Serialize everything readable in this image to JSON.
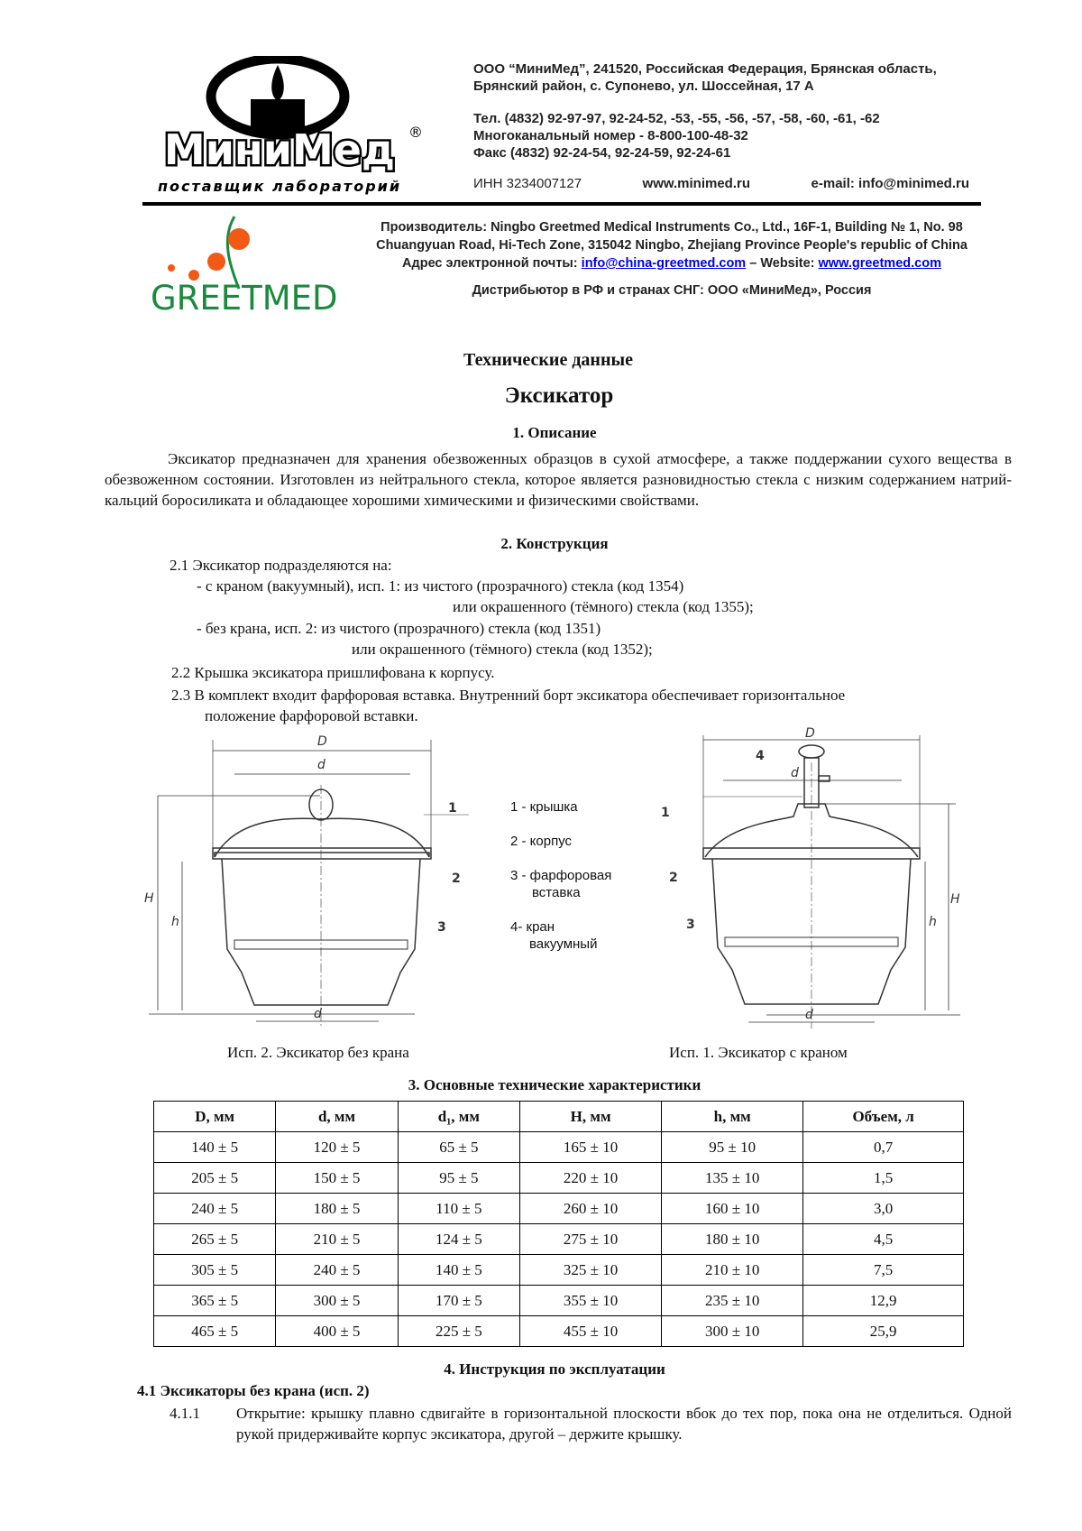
{
  "header": {
    "minimed_logo": "МиниМед",
    "minimed_slogan": "поставщик лабораторий",
    "address1": "ООО “МиниМед”, 241520, Российская Федерация, Брянская область,",
    "address2": "Брянский район, с. Супонево, ул. Шоссейная, 17 А",
    "phone": "Тел. (4832) 92-97-97, 92-24-52, -53, -55, -56, -57, -58, -60, -61, -62",
    "multichannel": "Многоканальный номер - 8-800-100-48-32",
    "fax": "Факс (4832) 92-24-54, 92-24-59, 92-24-61",
    "inn": "ИНН 3234007127",
    "website": "www.minimed.ru",
    "email": "e-mail: info@minimed.ru",
    "greetmed_logo": "GREETMED",
    "manufacturer1": "Производитель: Ningbo Greetmed Medical Instruments Co., Ltd., 16F-1, Building № 1, No. 98",
    "manufacturer2": "Chuangyuan Road, Hi-Tech Zone, 315042 Ningbo, Zhejiang Province People's republic of China",
    "email_label": "Адрес электронной почты: ",
    "email_link": "info@china-greetmed.com",
    "website_label": " – Website: ",
    "website_link": "www.greetmed.com",
    "distributor": "Дистрибьютор в РФ и странах СНГ: ООО «МиниМед», Россия"
  },
  "doc": {
    "title": "Технические данные",
    "product": "Эксикатор",
    "s1_title": "1.  Описание",
    "s1_text": "Эксикатор предназначен для хранения обезвоженных образцов в сухой атмосфере, а также поддержании сухого вещества в обезвоженном состоянии. Изготовлен из нейтрального стекла, которое является разновидностью стекла с низким содержанием натрий-кальций боросиликата и обладающее хорошими химическими и физическими свойствами.",
    "s2_title": "2.  Конструкция",
    "s2_1": "2.1   Эксикатор подразделяются на:",
    "s2_1a": "-  с краном (вакуумный), исп. 1: из чистого (прозрачного) стекла (код 1354)",
    "s2_1b": "или окрашенного (тёмного) стекла (код 1355);",
    "s2_1c": "-  без крана, исп. 2: из чистого (прозрачного) стекла (код 1351)",
    "s2_1d": "или окрашенного (тёмного) стекла (код 1352);",
    "s2_2": "2.2   Крышка эксикатора пришлифована к корпусу.",
    "s2_3a": "2.3   В комплект входит фарфоровая вставка. Внутренний борт эксикатора обеспечивает горизонтальное",
    "s2_3b": "положение фарфоровой вставки.",
    "legend": [
      "1 - крышка",
      "2 - корпус",
      "3 - фарфоровая",
      "вставка",
      "4- кран",
      "вакуумный"
    ],
    "dims": {
      "D": "D",
      "d": "d",
      "d1": "d",
      "H": "H",
      "h": "h",
      "n1": "1",
      "n2": "2",
      "n3": "3",
      "n4": "4"
    },
    "caption_left": "Исп. 2.  Эксикатор без крана",
    "caption_right": "Исп. 1.  Эксикатор с краном",
    "s3_title": "3.  Основные технические характеристики",
    "table": {
      "headers": [
        "D, мм",
        "d, мм",
        "d₁, мм",
        "H, мм",
        "h, мм",
        "Объем, л"
      ],
      "rows": [
        [
          "140 ± 5",
          "120 ± 5",
          "65 ± 5",
          "165 ± 10",
          "95 ± 10",
          "0,7"
        ],
        [
          "205 ± 5",
          "150 ± 5",
          "95 ± 5",
          "220 ± 10",
          "135 ± 10",
          "1,5"
        ],
        [
          "240 ± 5",
          "180 ± 5",
          "110 ± 5",
          "260 ± 10",
          "160 ± 10",
          "3,0"
        ],
        [
          "265 ± 5",
          "210 ± 5",
          "124 ± 5",
          "275 ± 10",
          "180 ± 10",
          "4,5"
        ],
        [
          "305 ± 5",
          "240 ± 5",
          "140 ± 5",
          "325 ± 10",
          "210 ± 10",
          "7,5"
        ],
        [
          "365 ± 5",
          "300 ± 5",
          "170 ± 5",
          "355 ± 10",
          "235 ± 10",
          "12,9"
        ],
        [
          "465 ± 5",
          "400 ± 5",
          "225 ± 5",
          "455 ± 10",
          "300 ± 10",
          "25,9"
        ]
      ]
    },
    "s4_title": "4.    Инструкция по эксплуатации",
    "s4_1": "4.1  Эксикаторы без крана (исп. 2)",
    "s4_1_1_num": "4.1.1",
    "s4_1_1": "Открытие: крышку плавно сдвигайте в горизонтальной плоскости вбок до тех пор, пока она не отделиться. Одной рукой придерживайте корпус эксикатора, другой – держите крышку."
  },
  "colors": {
    "greetmed_green": "#1a8a3c",
    "greetmed_orange": "#f05a14",
    "link": "#0000ee"
  }
}
